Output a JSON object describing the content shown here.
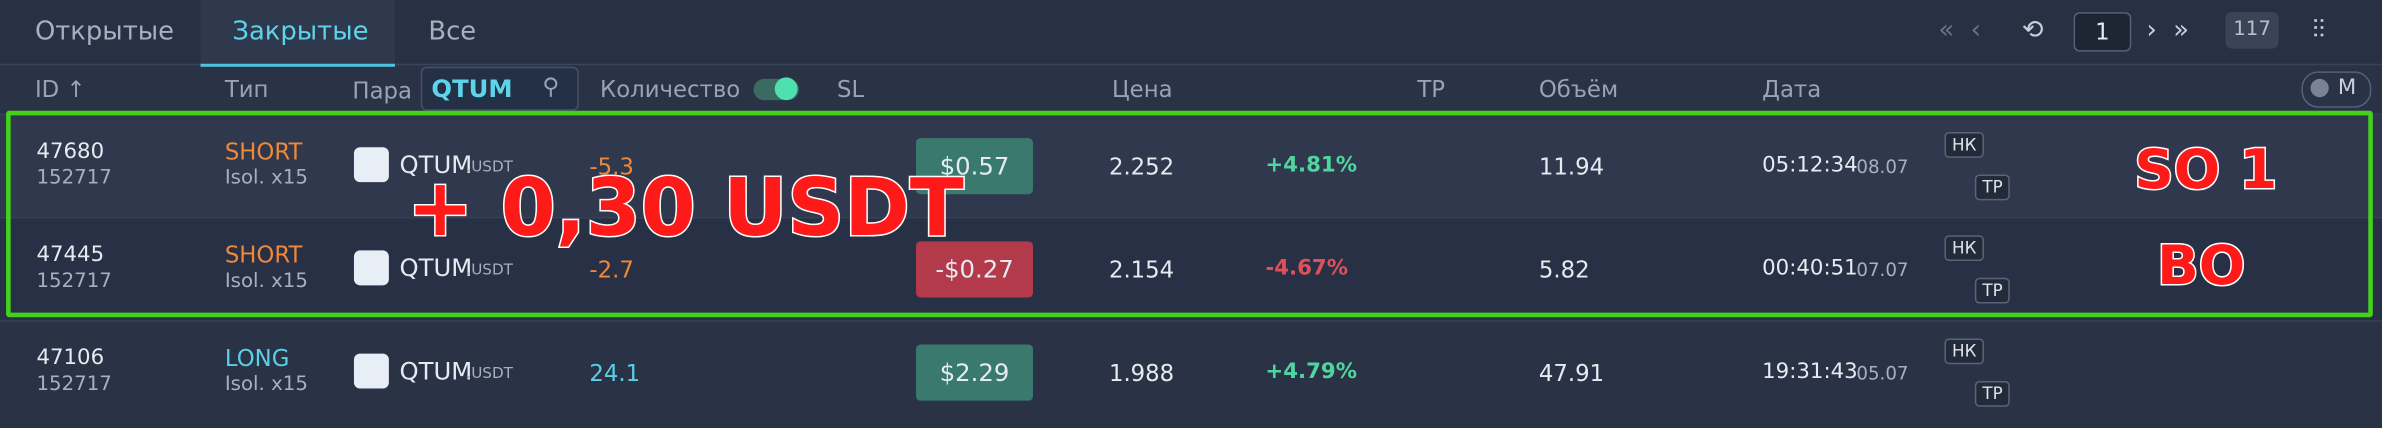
{
  "tabs": [
    "Открытые",
    "Закрытые",
    "Все"
  ],
  "pagination": {
    "page": "1",
    "total": "117"
  },
  "columns": {
    "id": "ID ↑",
    "type": "Тип",
    "pair": "Пара",
    "search": "QTUM",
    "qty": "Количество",
    "sl": "SL",
    "price": "Цена",
    "tp": "TP",
    "volume": "Объём",
    "date": "Дата",
    "toggle": "M"
  },
  "rows": [
    {
      "id": "47680",
      "sub": "152717",
      "side": "SHORT",
      "mode": "Isol. x15",
      "pair": "QTUM",
      "quote": ".USDT",
      "qty": "-5.3",
      "pnl": "$0.57",
      "price": "2.252",
      "pct": "+4.81%",
      "volume": "11.94",
      "time": "05:12:34",
      "date": "08.07",
      "tag1": "НК",
      "tag2": "TP"
    },
    {
      "id": "47445",
      "sub": "152717",
      "side": "SHORT",
      "mode": "Isol. x15",
      "pair": "QTUM",
      "quote": ".USDT",
      "qty": "-2.7",
      "pnl": "-$0.27",
      "price": "2.154",
      "pct": "-4.67%",
      "volume": "5.82",
      "time": "00:40:51",
      "date": "07.07",
      "tag1": "НК",
      "tag2": "TP"
    },
    {
      "id": "47106",
      "sub": "152717",
      "side": "LONG",
      "mode": "Isol. x15",
      "pair": "QTUM",
      "quote": ".USDT",
      "qty": "24.1",
      "pnl": "$2.29",
      "price": "1.988",
      "pct": "+4.79%",
      "volume": "47.91",
      "time": "19:31:43",
      "date": "05.07",
      "tag1": "НК",
      "tag2": "TP"
    }
  ],
  "annotations": {
    "profit": "+ 0,30 USDT",
    "so": "SO 1",
    "bo": "BO"
  }
}
